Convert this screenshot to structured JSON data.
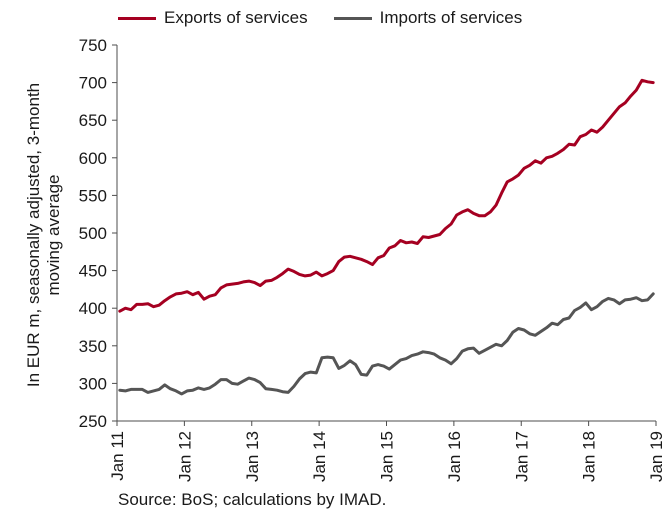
{
  "chart_data": {
    "type": "line",
    "ylabel": "In EUR m, seasonally adjusted, 3-month moving average",
    "ylim": [
      250,
      750
    ],
    "yticks": [
      250,
      300,
      350,
      400,
      450,
      500,
      550,
      600,
      650,
      700,
      750
    ],
    "x_start": "Jan 11",
    "x_end": "Jan 19",
    "xticks": [
      "Jan 11",
      "Jan 12",
      "Jan 13",
      "Jan 14",
      "Jan 15",
      "Jan 16",
      "Jan 17",
      "Jan 18",
      "Jan 19"
    ],
    "grid": false,
    "legend_position": "top",
    "series": [
      {
        "name": "Exports of services",
        "color": "#a50021",
        "values": [
          396,
          400,
          398,
          405,
          405,
          406,
          402,
          404,
          410,
          415,
          419,
          420,
          422,
          418,
          421,
          412,
          416,
          418,
          427,
          431,
          432,
          433,
          435,
          436,
          434,
          430,
          436,
          437,
          441,
          446,
          452,
          449,
          445,
          443,
          444,
          448,
          443,
          446,
          450,
          462,
          468,
          469,
          467,
          465,
          462,
          458,
          467,
          470,
          480,
          483,
          490,
          487,
          488,
          486,
          495,
          494,
          496,
          498,
          506,
          512,
          524,
          528,
          531,
          526,
          523,
          523,
          528,
          537,
          553,
          568,
          572,
          577,
          586,
          590,
          596,
          593,
          600,
          602,
          606,
          611,
          618,
          617,
          628,
          631,
          637,
          634,
          641,
          650,
          659,
          668,
          673,
          682,
          690,
          703,
          701,
          700
        ]
      },
      {
        "name": "Imports of services",
        "color": "#555555",
        "values": [
          291,
          290,
          292,
          292,
          292,
          288,
          290,
          292,
          298,
          293,
          290,
          286,
          290,
          291,
          294,
          292,
          294,
          299,
          305,
          305,
          300,
          299,
          303,
          307,
          305,
          301,
          293,
          292,
          291,
          289,
          288,
          296,
          306,
          313,
          315,
          314,
          334,
          335,
          334,
          320,
          324,
          330,
          325,
          312,
          311,
          323,
          325,
          323,
          319,
          325,
          331,
          333,
          337,
          339,
          342,
          341,
          339,
          334,
          331,
          326,
          333,
          343,
          346,
          347,
          340,
          344,
          348,
          352,
          350,
          357,
          368,
          373,
          371,
          366,
          364,
          369,
          374,
          380,
          378,
          385,
          387,
          397,
          401,
          407,
          398,
          402,
          409,
          413,
          411,
          406,
          411,
          412,
          414,
          410,
          411,
          419
        ]
      }
    ]
  },
  "footer": {
    "source": "Source: BoS; calculations by IMAD."
  }
}
